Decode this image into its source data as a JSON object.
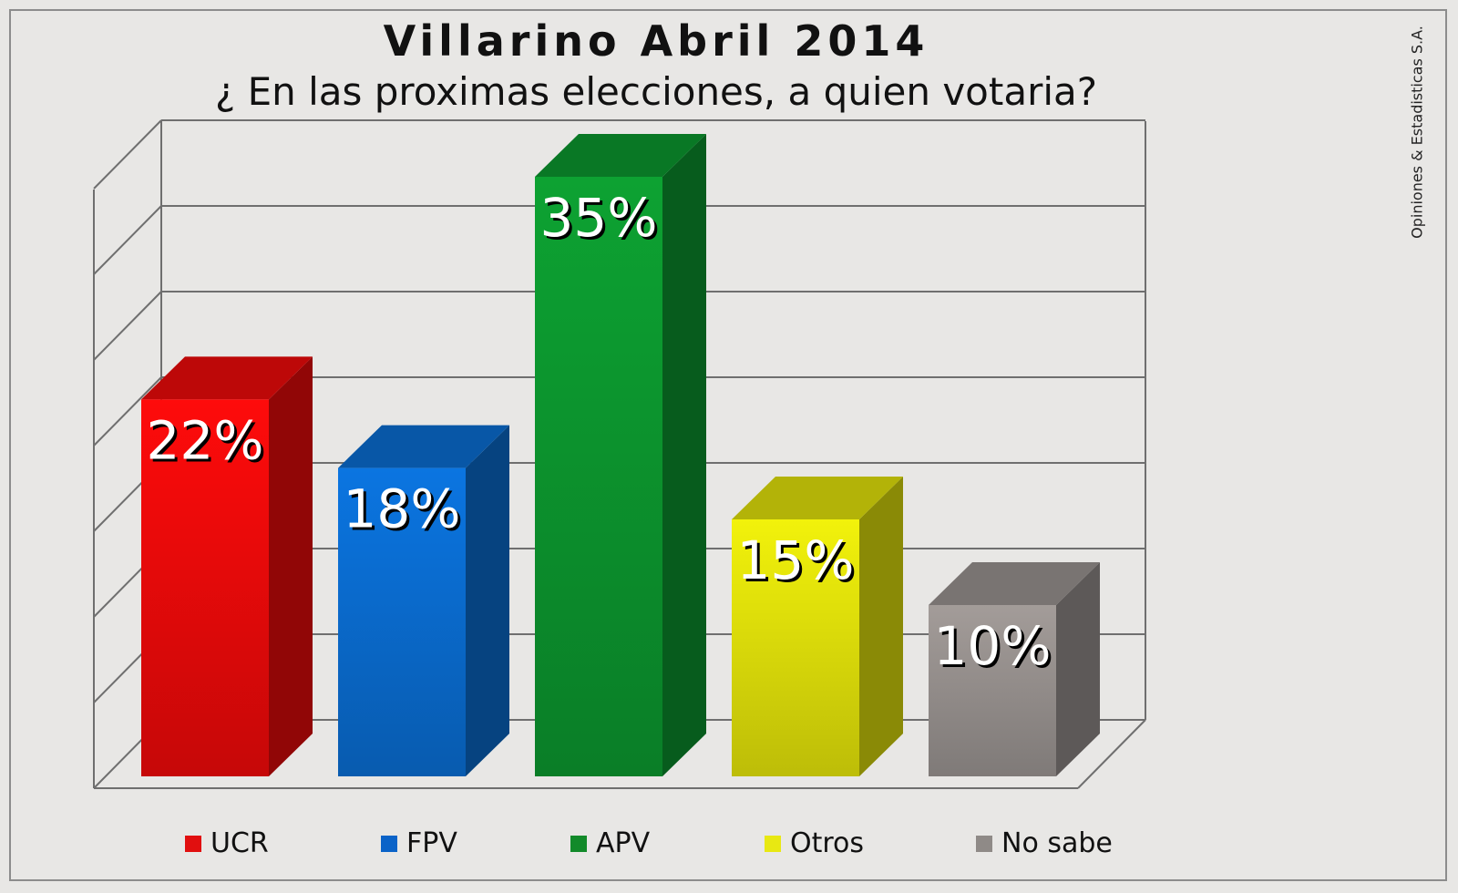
{
  "title": "Villarino Abril 2014",
  "subtitle": "¿ En las proximas elecciones, a quien votaria?",
  "watermark": "Opiniones & Estadisticas S.A.",
  "chart_data": {
    "type": "bar",
    "title": "Villarino Abril 2014",
    "subtitle": "¿ En las proximas elecciones, a quien votaria?",
    "categories": [
      "UCR",
      "FPV",
      "APV",
      "Otros",
      "No sabe"
    ],
    "values": [
      22,
      18,
      35,
      15,
      10
    ],
    "labels": [
      "22%",
      "18%",
      "35%",
      "15%",
      "10%"
    ],
    "colors": [
      "#f20a0a",
      "#0a6fd6",
      "#0c9a30",
      "#e6e60a",
      "#9b9592"
    ],
    "ylim": [
      0,
      40
    ],
    "grid": true,
    "legend_position": "bottom",
    "style": "3d"
  },
  "legend": [
    {
      "label": "UCR",
      "color": "#e10f0f"
    },
    {
      "label": "FPV",
      "color": "#0a63c8"
    },
    {
      "label": "APV",
      "color": "#128a2a"
    },
    {
      "label": "Otros",
      "color": "#e8e812"
    },
    {
      "label": "No sabe",
      "color": "#8f8a87"
    }
  ]
}
